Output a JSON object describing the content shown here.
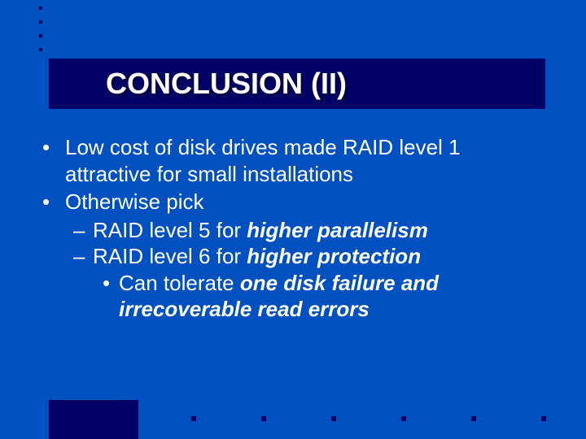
{
  "slide": {
    "title": "CONCLUSION (II)",
    "background_color": "#0050c0",
    "title_bar_color": "#000066",
    "text_color": "#ffffff",
    "title_fontsize": 36,
    "body_fontsize": 26,
    "bullets": [
      {
        "text_a": "Low cost of disk drives made RAID level 1 attractive for small installations"
      },
      {
        "text_a": "Otherwise pick",
        "dashes": [
          {
            "pre": "RAID level 5 for ",
            "em": "higher parallelism"
          },
          {
            "pre": "RAID level 6 for ",
            "em": "higher protection",
            "sub": {
              "pre": "Can tolerate ",
              "em": "one disk failure and irrecoverable read errors"
            }
          }
        ]
      }
    ],
    "decor": {
      "top_dot_count": 4,
      "bottom_dot_count": 6,
      "dot_color": "#000060"
    }
  }
}
